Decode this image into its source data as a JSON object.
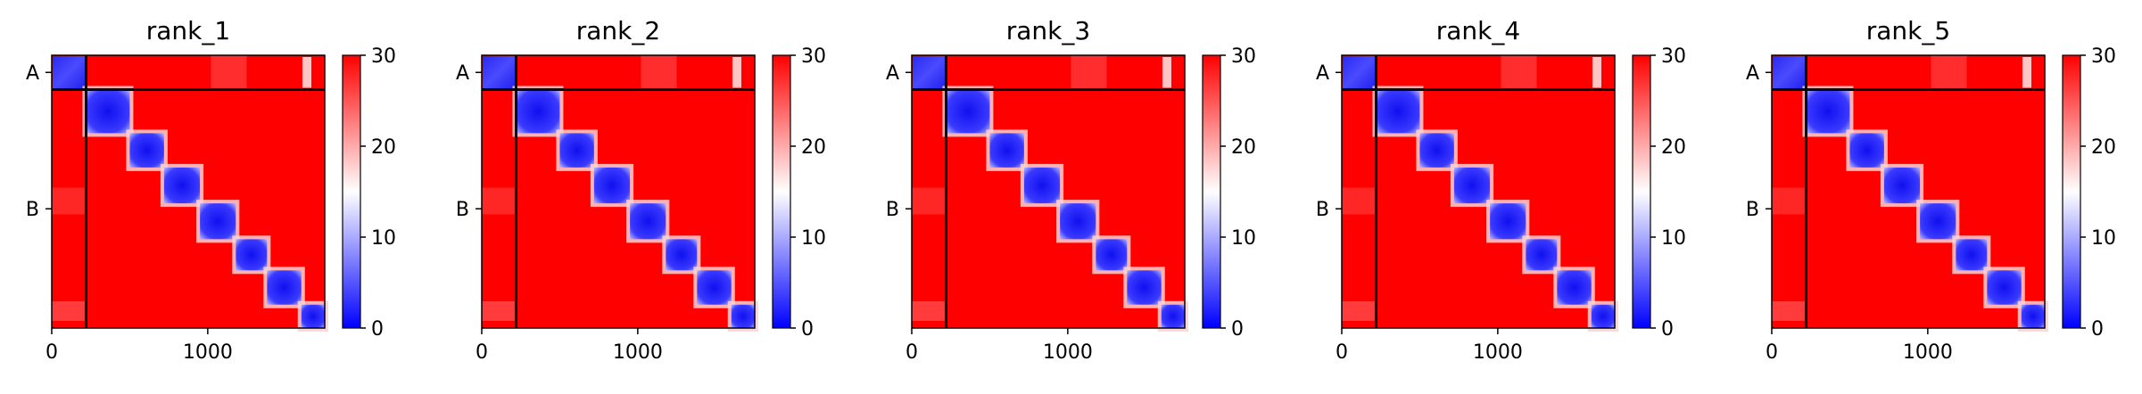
{
  "chart_data": [
    {
      "type": "heatmap",
      "title": "rank_1",
      "xticks": [
        0,
        1000
      ],
      "yticks": [
        "A",
        "B"
      ],
      "colorbar": {
        "ticks": [
          0,
          10,
          20,
          30
        ],
        "range": [
          0,
          30
        ],
        "colors": [
          "#0000ff",
          "#ffffff",
          "#ff0000"
        ]
      },
      "chains": [
        {
          "name": "A",
          "start": 0,
          "end": 220
        },
        {
          "name": "B",
          "start": 220,
          "end": 1750
        }
      ],
      "domains": [
        [
          220,
          500
        ],
        [
          500,
          720
        ],
        [
          720,
          950
        ],
        [
          950,
          1180
        ],
        [
          1180,
          1380
        ],
        [
          1380,
          1600
        ],
        [
          1600,
          1750
        ]
      ],
      "extent": 1750
    },
    {
      "type": "heatmap",
      "title": "rank_2",
      "xticks": [
        0,
        1000
      ],
      "yticks": [
        "A",
        "B"
      ],
      "colorbar": {
        "ticks": [
          0,
          10,
          20,
          30
        ],
        "range": [
          0,
          30
        ],
        "colors": [
          "#0000ff",
          "#ffffff",
          "#ff0000"
        ]
      },
      "chains": [
        {
          "name": "A",
          "start": 0,
          "end": 220
        },
        {
          "name": "B",
          "start": 220,
          "end": 1750
        }
      ],
      "domains": [
        [
          220,
          500
        ],
        [
          500,
          720
        ],
        [
          720,
          950
        ],
        [
          950,
          1180
        ],
        [
          1180,
          1380
        ],
        [
          1380,
          1600
        ],
        [
          1600,
          1750
        ]
      ],
      "extent": 1750
    },
    {
      "type": "heatmap",
      "title": "rank_3",
      "xticks": [
        0,
        1000
      ],
      "yticks": [
        "A",
        "B"
      ],
      "colorbar": {
        "ticks": [
          0,
          10,
          20,
          30
        ],
        "range": [
          0,
          30
        ],
        "colors": [
          "#0000ff",
          "#ffffff",
          "#ff0000"
        ]
      },
      "chains": [
        {
          "name": "A",
          "start": 0,
          "end": 220
        },
        {
          "name": "B",
          "start": 220,
          "end": 1750
        }
      ],
      "domains": [
        [
          220,
          500
        ],
        [
          500,
          720
        ],
        [
          720,
          950
        ],
        [
          950,
          1180
        ],
        [
          1180,
          1380
        ],
        [
          1380,
          1600
        ],
        [
          1600,
          1750
        ]
      ],
      "extent": 1750
    },
    {
      "type": "heatmap",
      "title": "rank_4",
      "xticks": [
        0,
        1000
      ],
      "yticks": [
        "A",
        "B"
      ],
      "colorbar": {
        "ticks": [
          0,
          10,
          20,
          30
        ],
        "range": [
          0,
          30
        ],
        "colors": [
          "#0000ff",
          "#ffffff",
          "#ff0000"
        ]
      },
      "chains": [
        {
          "name": "A",
          "start": 0,
          "end": 220
        },
        {
          "name": "B",
          "start": 220,
          "end": 1750
        }
      ],
      "domains": [
        [
          220,
          500
        ],
        [
          500,
          720
        ],
        [
          720,
          950
        ],
        [
          950,
          1180
        ],
        [
          1180,
          1380
        ],
        [
          1380,
          1600
        ],
        [
          1600,
          1750
        ]
      ],
      "extent": 1750
    },
    {
      "type": "heatmap",
      "title": "rank_5",
      "xticks": [
        0,
        1000
      ],
      "yticks": [
        "A",
        "B"
      ],
      "colorbar": {
        "ticks": [
          0,
          10,
          20,
          30
        ],
        "range": [
          0,
          30
        ],
        "colors": [
          "#0000ff",
          "#ffffff",
          "#ff0000"
        ]
      },
      "chains": [
        {
          "name": "A",
          "start": 0,
          "end": 220
        },
        {
          "name": "B",
          "start": 220,
          "end": 1750
        }
      ],
      "domains": [
        [
          220,
          500
        ],
        [
          500,
          720
        ],
        [
          720,
          950
        ],
        [
          950,
          1180
        ],
        [
          1180,
          1380
        ],
        [
          1380,
          1600
        ],
        [
          1600,
          1750
        ]
      ],
      "extent": 1750
    }
  ]
}
